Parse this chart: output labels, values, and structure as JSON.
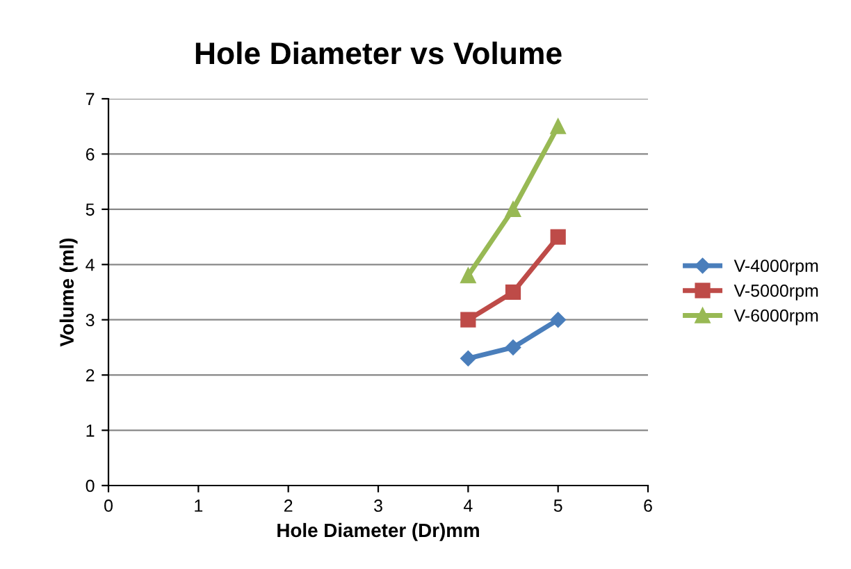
{
  "chart_data": {
    "type": "line",
    "title": "Hole Diameter vs Volume",
    "xlabel": "Hole Diameter (Dr)mm",
    "ylabel": "Volume (ml)",
    "x": [
      4,
      4.5,
      5
    ],
    "series": [
      {
        "name": "V-4000rpm",
        "color": "#4a7ebb",
        "marker": "diamond",
        "values": [
          2.3,
          2.5,
          3.0
        ]
      },
      {
        "name": "V-5000rpm",
        "color": "#be4b48",
        "marker": "square",
        "values": [
          3.0,
          3.5,
          4.5
        ]
      },
      {
        "name": "V-6000rpm",
        "color": "#98b954",
        "marker": "triangle",
        "values": [
          3.8,
          5.0,
          6.5
        ]
      }
    ],
    "xlim": [
      0,
      6
    ],
    "xticks": [
      0,
      1,
      2,
      3,
      4,
      5,
      6
    ],
    "ylim": [
      0,
      7
    ],
    "yticks": [
      0,
      1,
      2,
      3,
      4,
      5,
      6,
      7
    ],
    "grid": "y",
    "legend": "right",
    "line_style": "solid"
  }
}
